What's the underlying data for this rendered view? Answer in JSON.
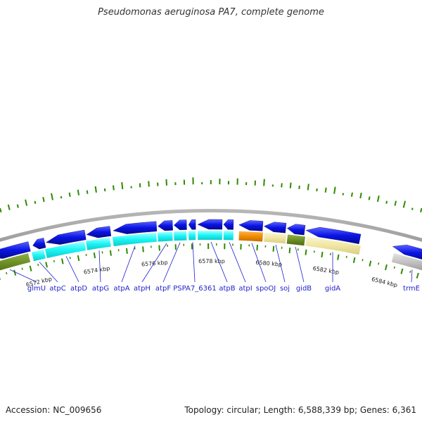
{
  "title": "Pseudomonas aeruginosa PA7, complete genome",
  "footer": {
    "accession": "Accession: NC_009656",
    "topology": "Topology: circular; Length: 6,588,339 bp; Genes: 6,361"
  },
  "colors": {
    "gene_blue": "#0a14e6",
    "cog_cyan": "#19f5f5",
    "cog_olive": "#6b8e23",
    "cog_orange": "#f08c00",
    "cog_khaki": "#f0e6a0",
    "cog_gray": "#c0c0c0",
    "tick_green": "#2e8b00",
    "label_blue": "#1f1fcc",
    "backbone": "#808080"
  },
  "scale": {
    "ticks": [
      {
        "label": "6572 kbp"
      },
      {
        "label": "6574 kbp"
      },
      {
        "label": "6576 kbp"
      },
      {
        "label": "6578 kbp"
      },
      {
        "label": "6580 kbp"
      },
      {
        "label": "6582 kbp"
      },
      {
        "label": "6584 kbp"
      }
    ]
  },
  "genes": [
    {
      "label": "glmU"
    },
    {
      "label": "atpC"
    },
    {
      "label": "atpD"
    },
    {
      "label": "atpG"
    },
    {
      "label": "atpA"
    },
    {
      "label": "atpH"
    },
    {
      "label": "atpF"
    },
    {
      "label": "PSPA7_6361"
    },
    {
      "label": "atpB"
    },
    {
      "label": "atpI"
    },
    {
      "label": "spoOJ"
    },
    {
      "label": "soj"
    },
    {
      "label": "gidB"
    },
    {
      "label": "gidA"
    },
    {
      "label": "trmE"
    }
  ]
}
